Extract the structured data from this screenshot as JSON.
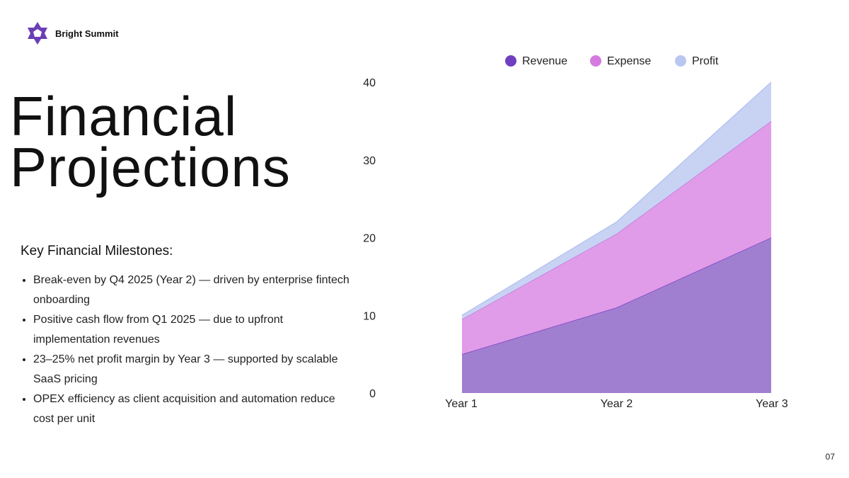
{
  "brand": {
    "name": "Bright Summit",
    "color": "#6a3fb5"
  },
  "title_lines": [
    "Financial",
    "Projections"
  ],
  "milestones": {
    "heading": "Key Financial Milestones:",
    "items": [
      "Break-even by Q4 2025 (Year 2) — driven by enterprise fintech onboarding",
      "Positive cash flow from Q1 2025 — due to upfront implementation revenues",
      "23–25% net profit margin by Year 3 — supported by scalable SaaS pricing",
      "OPEX efficiency as client acquisition and automation reduce cost per unit"
    ]
  },
  "page_number": "07",
  "chart_data": {
    "type": "area",
    "stacked": true,
    "categories": [
      "Year 1",
      "Year 2",
      "Year 3"
    ],
    "series": [
      {
        "name": "Revenue",
        "values": [
          5,
          11,
          20
        ],
        "color": "#a07fd0",
        "line_color": "#7b3fc4",
        "legend_color": "#6f3fc0"
      },
      {
        "name": "Expense",
        "values": [
          4.5,
          9.5,
          15
        ],
        "color": "#e09ce8",
        "line_color": "#c07ad8",
        "legend_color": "#d47be0"
      },
      {
        "name": "Profit",
        "values": [
          0.5,
          1.5,
          5
        ],
        "color": "#c8d3f4",
        "line_color": "#b8c4ee",
        "legend_color": "#b8c6f0"
      }
    ],
    "yticks": [
      0,
      10,
      20,
      30,
      40
    ],
    "ylim": [
      0,
      40
    ],
    "grid": false,
    "legend": "top"
  }
}
